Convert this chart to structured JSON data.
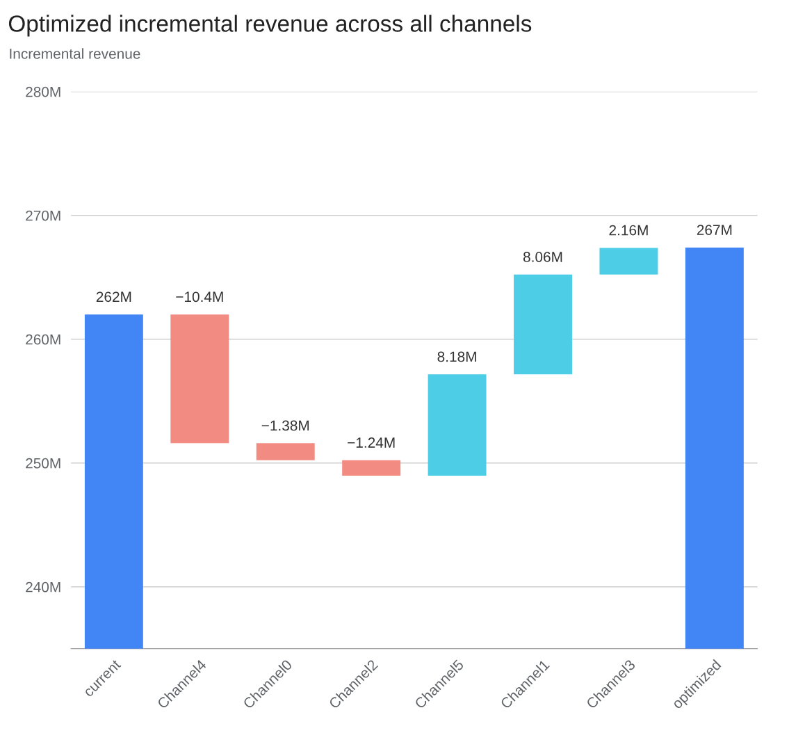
{
  "chart_data": {
    "type": "bar",
    "title": "Optimized incremental revenue across all channels",
    "ylabel": "Incremental revenue",
    "categories": [
      "current",
      "Channel4",
      "Channel0",
      "Channel2",
      "Channel5",
      "Channel1",
      "Channel3",
      "optimized"
    ],
    "values": [
      262.0,
      -10.4,
      -1.38,
      -1.24,
      8.18,
      8.06,
      2.16,
      267.4
    ],
    "base": [
      null,
      262.0,
      251.6,
      250.22,
      248.98,
      257.16,
      265.22,
      null
    ],
    "colors": [
      "#4285f4",
      "#f28b82",
      "#f28b82",
      "#f28b82",
      "#4ecde6",
      "#4ecde6",
      "#4ecde6",
      "#4285f4"
    ],
    "value_labels": [
      "262M",
      "−10.4M",
      "−1.38M",
      "−1.24M",
      "8.18M",
      "8.06M",
      "2.16M",
      "267M"
    ],
    "ylim": [
      235,
      280
    ],
    "yticks": [
      {
        "value": 240,
        "label": "240M"
      },
      {
        "value": 250,
        "label": "250M"
      },
      {
        "value": 260,
        "label": "260M"
      },
      {
        "value": 270,
        "label": "270M"
      },
      {
        "value": 280,
        "label": "280M"
      }
    ],
    "grid": "y"
  }
}
